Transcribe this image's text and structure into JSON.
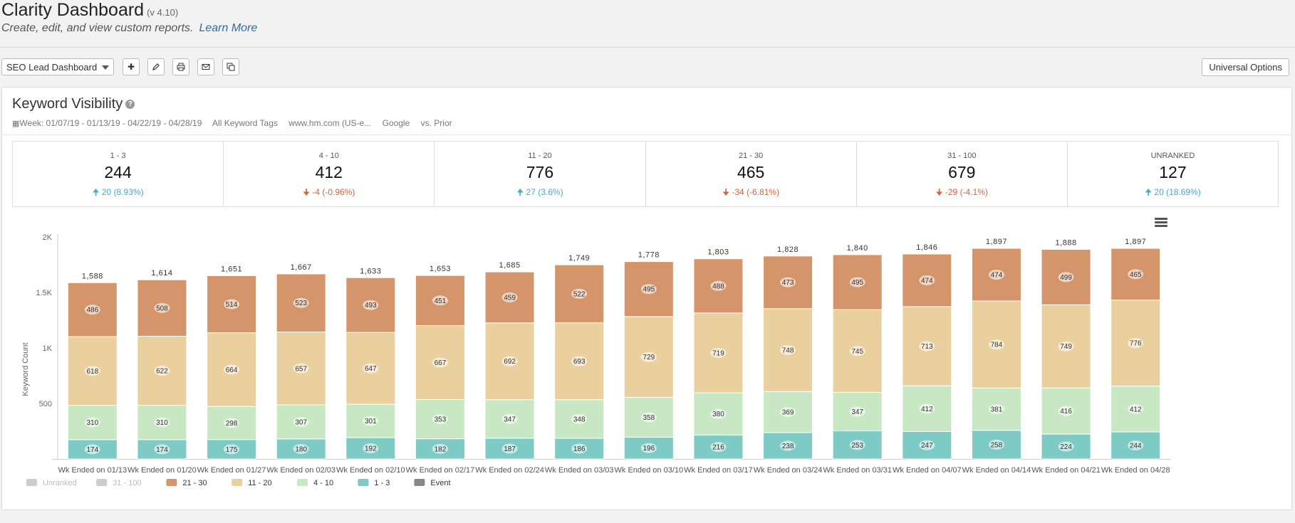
{
  "header": {
    "title": "Clarity Dashboard",
    "version": "(v 4.10)",
    "subtitle": "Create, edit, and view custom reports.",
    "learn_more": "Learn More"
  },
  "toolbar": {
    "dashboard_select": "SEO Lead Dashboard",
    "universal_options": "Universal Options",
    "buttons": [
      "add-icon",
      "edit-icon",
      "print-icon",
      "email-icon",
      "copy-icon"
    ]
  },
  "panel": {
    "title": "Keyword Visibility",
    "filters": {
      "week": "Week: 01/07/19 - 01/13/19 - 04/22/19 - 04/28/19",
      "tags": "All Keyword Tags",
      "site": "www.hm.com (US-e...",
      "engine": "Google",
      "compare": "vs. Prior"
    }
  },
  "summary": [
    {
      "label": "1 - 3",
      "value": "244",
      "change": "20 (8.93%)",
      "direction": "up"
    },
    {
      "label": "4 - 10",
      "value": "412",
      "change": "-4 (-0.96%)",
      "direction": "down"
    },
    {
      "label": "11 - 20",
      "value": "776",
      "change": "27 (3.6%)",
      "direction": "up"
    },
    {
      "label": "21 - 30",
      "value": "465",
      "change": "-34 (-6.81%)",
      "direction": "down"
    },
    {
      "label": "31 - 100",
      "value": "679",
      "change": "-29 (-4.1%)",
      "direction": "down"
    },
    {
      "label": "UNRANKED",
      "value": "127",
      "change": "20 (18.69%)",
      "direction": "up"
    }
  ],
  "chart_data": {
    "type": "bar",
    "stacked": true,
    "ylabel": "Keyword Count",
    "ylim": [
      0,
      2000
    ],
    "yticks": [
      "2K",
      "1.5K",
      "1K",
      "500"
    ],
    "ytick_values": [
      2000,
      1500,
      1000,
      500
    ],
    "categories": [
      "Wk Ended on 01/13",
      "Wk Ended on 01/20",
      "Wk Ended on 01/27",
      "Wk Ended on 02/03",
      "Wk Ended on 02/10",
      "Wk Ended on 02/17",
      "Wk Ended on 02/24",
      "Wk Ended on 03/03",
      "Wk Ended on 03/10",
      "Wk Ended on 03/17",
      "Wk Ended on 03/24",
      "Wk Ended on 03/31",
      "Wk Ended on 04/07",
      "Wk Ended on 04/14",
      "Wk Ended on 04/21",
      "Wk Ended on 04/28"
    ],
    "totals": [
      1588,
      1614,
      1651,
      1667,
      1633,
      1653,
      1685,
      1749,
      1778,
      1803,
      1828,
      1840,
      1846,
      1897,
      1888,
      1897
    ],
    "total_labels": [
      "1,588",
      "1,614",
      "1,651",
      "1,667",
      "1,633",
      "1,653",
      "1,685",
      "1,749",
      "1,778",
      "1,803",
      "1,828",
      "1,840",
      "1,846",
      "1,897",
      "1,888",
      "1,897"
    ],
    "series": [
      {
        "name": "1 - 3",
        "color": "#7dcbc4",
        "values": [
          174,
          174,
          175,
          180,
          192,
          182,
          187,
          186,
          196,
          216,
          238,
          253,
          247,
          258,
          224,
          244
        ]
      },
      {
        "name": "4 - 10",
        "color": "#c8e8c4",
        "values": [
          310,
          310,
          298,
          307,
          301,
          353,
          347,
          348,
          358,
          380,
          369,
          347,
          412,
          381,
          416,
          412
        ]
      },
      {
        "name": "11 - 20",
        "color": "#ead09e",
        "values": [
          618,
          622,
          664,
          657,
          647,
          667,
          692,
          693,
          729,
          719,
          748,
          745,
          713,
          784,
          749,
          776
        ]
      },
      {
        "name": "21 - 30",
        "color": "#d4956a",
        "values": [
          486,
          508,
          514,
          523,
          493,
          451,
          459,
          522,
          495,
          488,
          473,
          495,
          474,
          474,
          499,
          465
        ]
      }
    ],
    "legend": [
      {
        "name": "Unranked",
        "color": "#cccccc",
        "muted": true
      },
      {
        "name": "31 - 100",
        "color": "#cccccc",
        "muted": true
      },
      {
        "name": "21 - 30",
        "color": "#d4956a",
        "muted": false
      },
      {
        "name": "11 - 20",
        "color": "#ead09e",
        "muted": false
      },
      {
        "name": "4 - 10",
        "color": "#c8e8c4",
        "muted": false
      },
      {
        "name": "1 - 3",
        "color": "#7dcbc4",
        "muted": false
      },
      {
        "name": "Event",
        "color": "#888888",
        "muted": false
      }
    ],
    "legend_position": "bottom-left"
  }
}
